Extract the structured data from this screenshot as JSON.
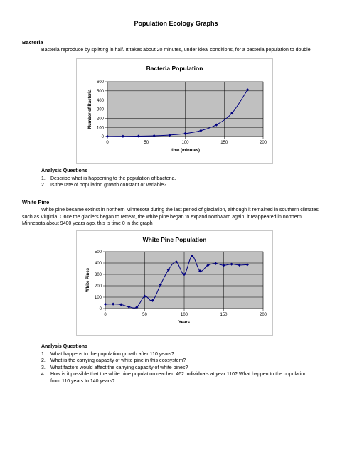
{
  "page_title": "Population Ecology Graphs",
  "bacteria": {
    "heading": "Bacteria",
    "intro": "Bacteria reproduce by splitting in half. It takes about 20 minutes, under ideal conditions, for a bacteria population to double.",
    "analysis_heading": "Analysis Questions",
    "questions": [
      {
        "num": "1.",
        "text": "Describe what is happening to the population of bacteria."
      },
      {
        "num": "2.",
        "text": "Is the rate of population growth constant or variable?"
      }
    ]
  },
  "white_pine": {
    "heading": "White Pine",
    "intro_lines": [
      "White pine became extinct in northern Minnesota during the last period of glaciation, although it remained in southern climates",
      "such as Virginia. Once the glaciers began to retreat, the white pine began to expand northward again; it reappeared in northern",
      "Minnesota about 9400 years ago, this is time 0 in the graph"
    ],
    "analysis_heading": "Analysis Questions",
    "questions": [
      {
        "num": "1.",
        "lines": [
          "What happens to the population growth after 110 years?"
        ]
      },
      {
        "num": "2.",
        "lines": [
          "What is the carrying capacity of white pine in this ecosystem?"
        ]
      },
      {
        "num": "3.",
        "lines": [
          "What factors would affect the carrying capacity of white pines?"
        ]
      },
      {
        "num": "4.",
        "lines": [
          "How is it possible that the white pine population reached 462 individuals at year 110? What happen to the population",
          "from 110 years to 140 years?"
        ]
      }
    ]
  },
  "chart_data": [
    {
      "type": "line",
      "title": "Bacteria Population",
      "xlabel": "time (minutes)",
      "ylabel": "Number of Bacteria",
      "xlim": [
        0,
        200
      ],
      "ylim": [
        0,
        600
      ],
      "xticks": [
        0,
        50,
        100,
        150,
        200
      ],
      "yticks": [
        0,
        100,
        200,
        300,
        400,
        500,
        600
      ],
      "grid": true,
      "plot_bg": "#c0c0c0",
      "line_color": "#000080",
      "x": [
        0,
        20,
        40,
        60,
        80,
        100,
        120,
        140,
        160,
        180
      ],
      "y": [
        1,
        2,
        4,
        8,
        16,
        32,
        64,
        128,
        256,
        512
      ]
    },
    {
      "type": "line",
      "title": "White Pine Population",
      "xlabel": "Years",
      "ylabel": "White Pines",
      "xlim": [
        0,
        200
      ],
      "ylim": [
        0,
        500
      ],
      "xticks": [
        0,
        50,
        100,
        150,
        200
      ],
      "yticks": [
        0,
        100,
        200,
        300,
        400,
        500
      ],
      "grid": true,
      "plot_bg": "#c0c0c0",
      "line_color": "#000080",
      "x": [
        0,
        10,
        20,
        30,
        40,
        50,
        60,
        70,
        80,
        90,
        100,
        110,
        120,
        130,
        140,
        150,
        160,
        170,
        180
      ],
      "y": [
        38,
        40,
        35,
        15,
        12,
        108,
        70,
        210,
        340,
        410,
        300,
        462,
        330,
        380,
        395,
        380,
        390,
        382,
        385
      ]
    }
  ]
}
